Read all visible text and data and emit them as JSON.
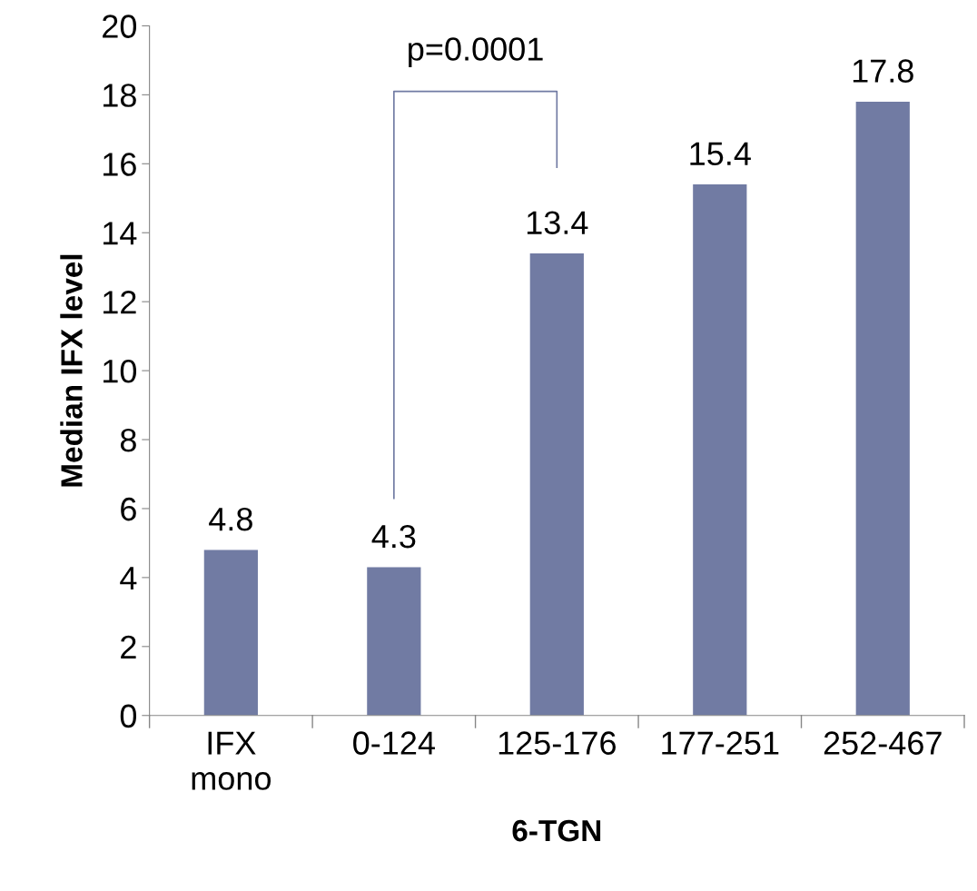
{
  "chart_data": {
    "type": "bar",
    "xlabel": "6-TGN",
    "ylabel": "Median IFX level",
    "categories": [
      "IFX\nmono",
      "0-124",
      "125-176",
      "177-251",
      "252-467"
    ],
    "values": [
      4.8,
      4.3,
      13.4,
      15.4,
      17.8
    ],
    "color": "#717ba3",
    "ylim": [
      0,
      20
    ],
    "yticks": [
      0,
      2,
      4,
      6,
      8,
      10,
      12,
      14,
      16,
      18,
      20
    ],
    "data_labels": true,
    "grid": false,
    "legend": false,
    "annotations": [
      "p=0.0001"
    ]
  }
}
